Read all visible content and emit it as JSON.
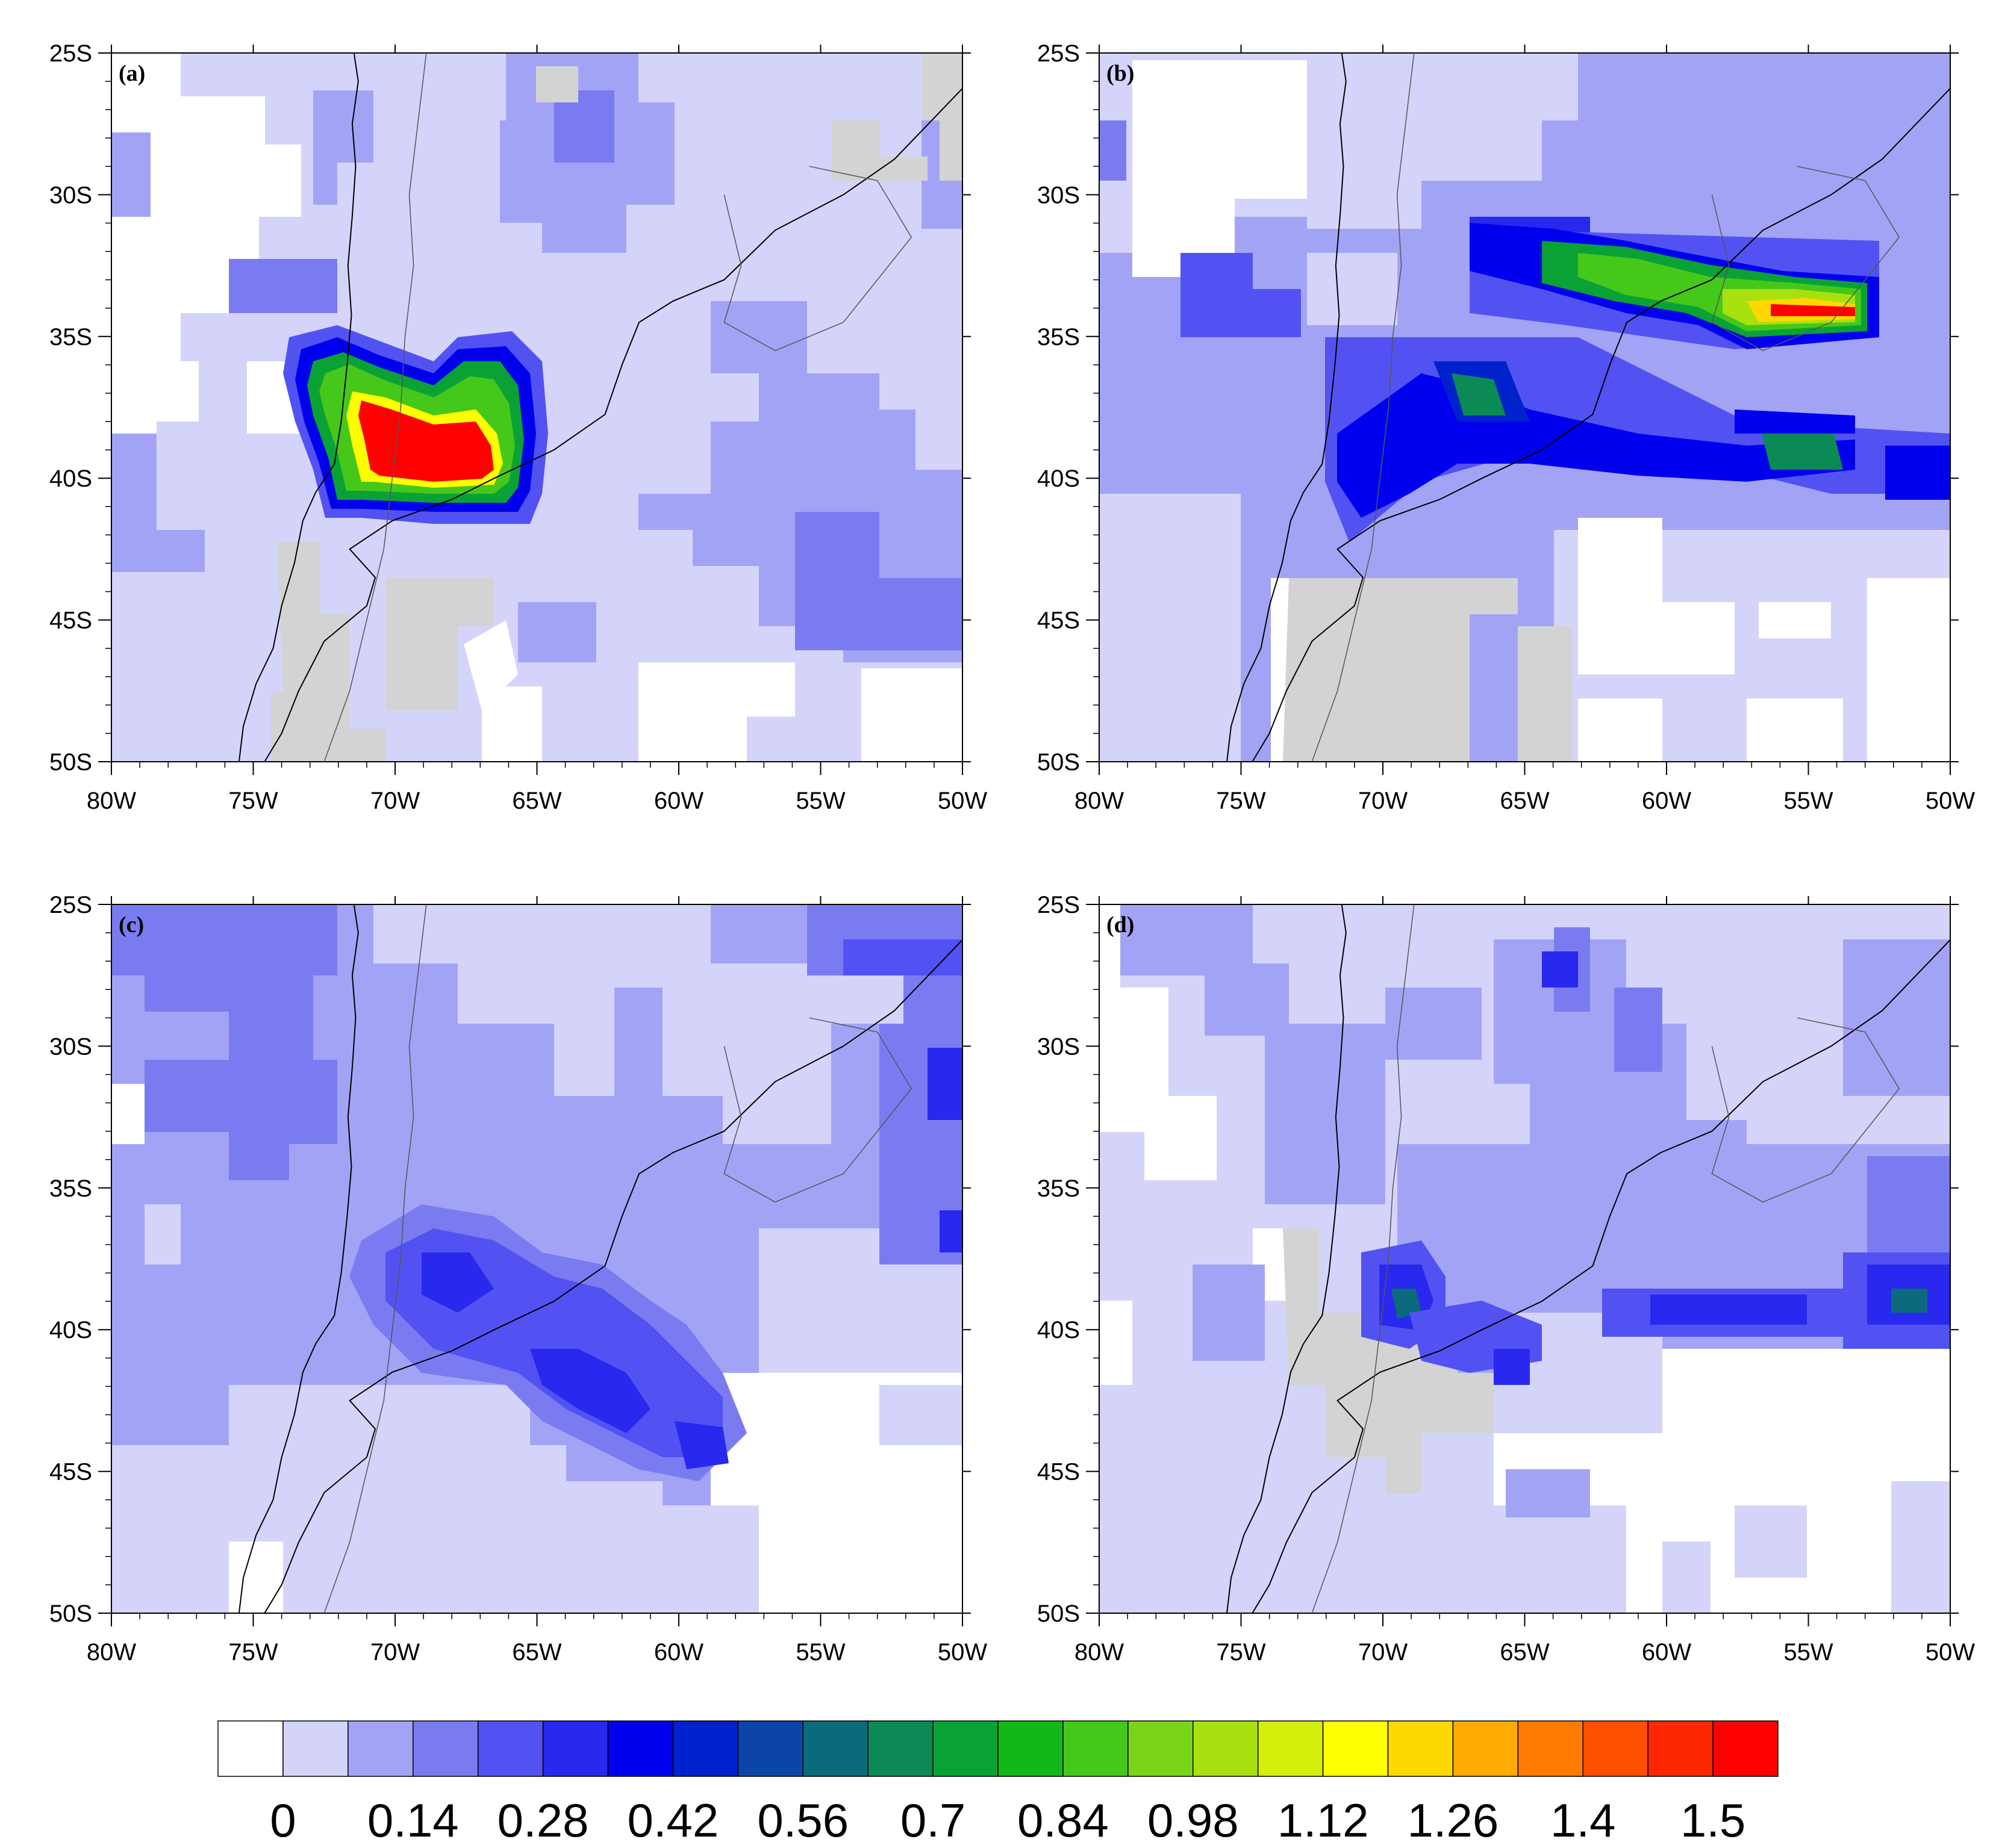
{
  "figure": {
    "colorbar": {
      "colors": [
        "#ffffff",
        "#d4d4fb",
        "#a3a3f6",
        "#7b7bf1",
        "#5252f2",
        "#2828ef",
        "#0000ee",
        "#0022cc",
        "#0b45a8",
        "#0b6a7c",
        "#0b8a55",
        "#0ba235",
        "#12b81a",
        "#46c81a",
        "#7ad51a",
        "#a8e10f",
        "#d2ee0a",
        "#ffff00",
        "#ffd800",
        "#ffaa00",
        "#ff7c00",
        "#ff4f00",
        "#ff2700",
        "#ff0000"
      ],
      "labels": [
        "0",
        "0.14",
        "0.28",
        "0.42",
        "0.56",
        "0.7",
        "0.84",
        "0.98",
        "1.12",
        "1.26",
        "1.4",
        "1.5"
      ]
    },
    "axes": {
      "lon_ticks": [
        "80W",
        "75W",
        "70W",
        "65W",
        "60W",
        "55W",
        "50W"
      ],
      "lat_ticks": [
        "25S",
        "30S",
        "35S",
        "40S",
        "45S",
        "50S"
      ]
    },
    "panels": [
      {
        "tag": "(a)"
      },
      {
        "tag": "(b)"
      },
      {
        "tag": "(c)"
      },
      {
        "tag": "(d)"
      }
    ]
  }
}
